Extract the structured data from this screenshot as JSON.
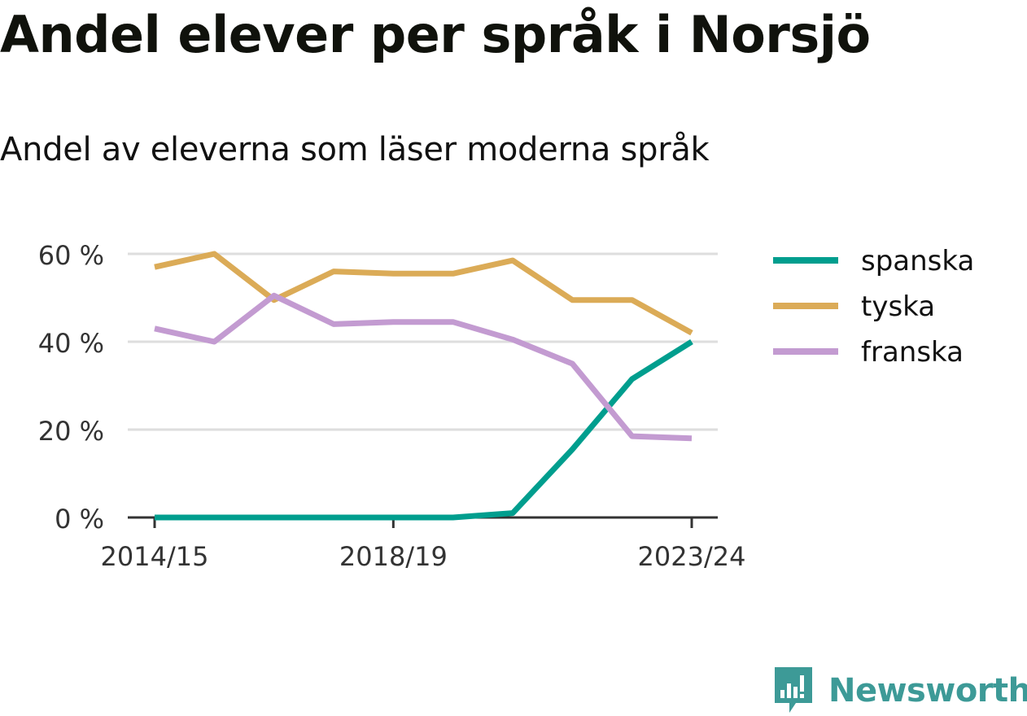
{
  "title": "Andel elever per språk i Norsjö",
  "subtitle": "Andel av eleverna som läser moderna språk",
  "brand": {
    "name": "Newsworthy",
    "icon": "newsworthy-logo-icon",
    "color": "#3d9a97"
  },
  "chart_data": {
    "type": "line",
    "x": [
      "2014/15",
      "2015/16",
      "2016/17",
      "2017/18",
      "2018/19",
      "2019/20",
      "2020/21",
      "2021/22",
      "2022/23",
      "2023/24"
    ],
    "x_tick_labels": [
      "2014/15",
      "2018/19",
      "2023/24"
    ],
    "ylim": [
      0,
      60
    ],
    "y_ticks": [
      0,
      20,
      40,
      60
    ],
    "y_tick_labels": [
      "0 %",
      "20 %",
      "40 %",
      "60 %"
    ],
    "grid": true,
    "legend_position": "right",
    "series": [
      {
        "name": "spanska",
        "color": "#009e8e",
        "values": [
          0,
          0,
          0,
          0,
          0,
          0,
          1,
          15.5,
          31.5,
          40
        ]
      },
      {
        "name": "tyska",
        "color": "#dbab57",
        "values": [
          57,
          60,
          49.5,
          56,
          55.5,
          55.5,
          58.5,
          49.5,
          49.5,
          42
        ]
      },
      {
        "name": "franska",
        "color": "#c39bd1",
        "values": [
          43,
          40,
          50.5,
          44,
          44.5,
          44.5,
          40.5,
          35,
          18.5,
          18
        ]
      }
    ]
  }
}
